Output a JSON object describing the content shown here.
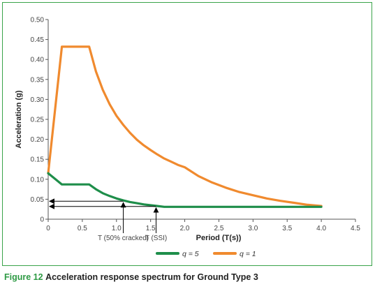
{
  "caption": {
    "figure_label": "Figure 12",
    "text": "Acceleration response spectrum for Ground Type 3"
  },
  "chart_data": {
    "type": "line",
    "title": "",
    "xlabel": "Period (T(s))",
    "ylabel": "Acceleration (g)",
    "xlim": [
      0,
      4.5
    ],
    "ylim": [
      0,
      0.5
    ],
    "xticks": [
      0,
      0.5,
      1.0,
      1.5,
      2.0,
      2.5,
      3.0,
      3.5,
      4.0,
      4.5
    ],
    "xtick_labels": [
      "0",
      "0.5",
      "1.0",
      "1.5",
      "2.0",
      "2.5",
      "3.0",
      "3.5",
      "4.0",
      "4.5"
    ],
    "yticks": [
      0,
      0.05,
      0.1,
      0.15,
      0.2,
      0.25,
      0.3,
      0.35,
      0.4,
      0.45,
      0.5
    ],
    "ytick_labels": [
      "0",
      "0.05",
      "0.10",
      "0.15",
      "0.20",
      "0.25",
      "0.30",
      "0.35",
      "0.40",
      "0.45",
      "0.50"
    ],
    "grid": false,
    "legend_position": "bottom-center",
    "series": [
      {
        "name": "q = 5",
        "color": "#1e8e4a",
        "x": [
          0,
          0.2,
          0.3,
          0.4,
          0.5,
          0.6,
          0.7,
          0.8,
          0.9,
          1.0,
          1.1,
          1.2,
          1.3,
          1.4,
          1.5,
          1.6,
          1.7,
          2.0,
          2.5,
          3.0,
          3.5,
          4.0
        ],
        "y": [
          0.115,
          0.087,
          0.087,
          0.087,
          0.087,
          0.087,
          0.075,
          0.065,
          0.058,
          0.052,
          0.047,
          0.043,
          0.04,
          0.037,
          0.035,
          0.033,
          0.031,
          0.031,
          0.031,
          0.031,
          0.031,
          0.031
        ]
      },
      {
        "name": "q = 1",
        "color": "#f08a2e",
        "x": [
          0,
          0.2,
          0.3,
          0.4,
          0.5,
          0.6,
          0.7,
          0.8,
          0.9,
          1.0,
          1.1,
          1.2,
          1.3,
          1.4,
          1.5,
          1.6,
          1.7,
          1.8,
          1.9,
          2.0,
          2.2,
          2.4,
          2.6,
          2.8,
          3.0,
          3.2,
          3.4,
          3.6,
          3.8,
          4.0
        ],
        "y": [
          0.115,
          0.432,
          0.432,
          0.432,
          0.432,
          0.432,
          0.37,
          0.324,
          0.288,
          0.259,
          0.236,
          0.216,
          0.199,
          0.185,
          0.173,
          0.162,
          0.152,
          0.144,
          0.136,
          0.13,
          0.108,
          0.092,
          0.079,
          0.068,
          0.06,
          0.052,
          0.046,
          0.041,
          0.036,
          0.033
        ]
      }
    ],
    "annotations": [
      {
        "label": "T (50% cracked)",
        "x": 1.1,
        "y": 0.045
      },
      {
        "label": "T (SSI)",
        "x": 1.58,
        "y": 0.032
      }
    ]
  }
}
